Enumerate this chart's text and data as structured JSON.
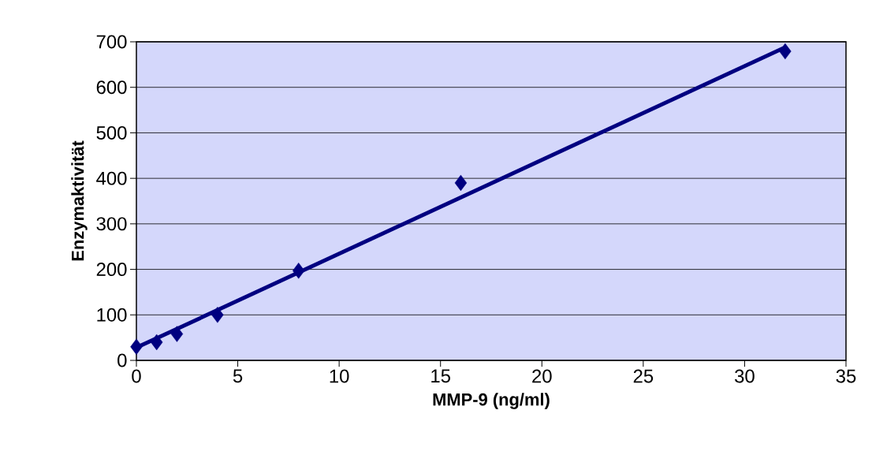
{
  "chart_data": {
    "type": "scatter",
    "xlabel": "MMP-9 (ng/ml)",
    "ylabel": "Enzymaktivität",
    "xlim": [
      0,
      35
    ],
    "xticks": [
      0,
      5,
      10,
      15,
      20,
      25,
      30,
      35
    ],
    "ylim": [
      0,
      700
    ],
    "yticks": [
      0,
      100,
      200,
      300,
      400,
      500,
      600,
      700
    ],
    "grid": "y",
    "series": [
      {
        "marker": "diamond",
        "color": "#000080",
        "x": [
          0,
          1,
          2,
          4,
          8,
          16,
          32
        ],
        "values": [
          30,
          40,
          58,
          100,
          197,
          390,
          679
        ]
      },
      {
        "type": "line",
        "color": "#000080",
        "x": [
          0,
          32
        ],
        "values": [
          28,
          688
        ]
      }
    ]
  }
}
